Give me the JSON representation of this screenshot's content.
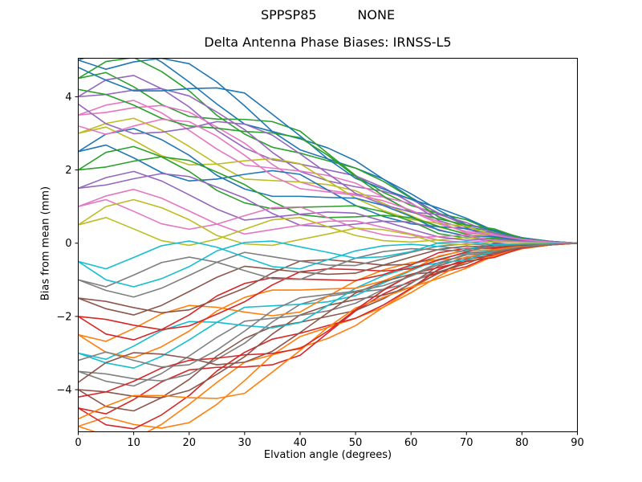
{
  "header": {
    "suptitle": "SPPSP85          NONE",
    "title": "Delta Antenna Phase Biases: IRNSS-L5"
  },
  "chart_data": {
    "type": "line",
    "suptitle": "SPPSP85          NONE",
    "title": "Delta Antenna Phase Biases: IRNSS-L5",
    "xlabel": "Elvation angle (degrees)",
    "ylabel": "Bias from mean (mm)",
    "xlim": [
      0,
      90
    ],
    "ylim": [
      -5.15,
      5.05
    ],
    "xticks": [
      0,
      10,
      20,
      30,
      40,
      50,
      60,
      70,
      80,
      90
    ],
    "yticks": [
      -4,
      -2,
      0,
      2,
      4
    ],
    "grid": false,
    "legend": null,
    "line_width": 1.6,
    "palette": [
      "#1f77b4",
      "#ff7f0e",
      "#2ca02c",
      "#d62728",
      "#9467bd",
      "#8c564b",
      "#e377c2",
      "#7f7f7f",
      "#bcbd22",
      "#17becf"
    ],
    "x": [
      0,
      5,
      10,
      15,
      20,
      25,
      30,
      35,
      40,
      45,
      50,
      55,
      60,
      65,
      70,
      75,
      80,
      85,
      90
    ],
    "series": [
      {
        "color": "#1f77b4",
        "values": [
          5.0,
          5.25,
          5.35,
          4.95,
          4.4,
          3.8,
          3.25,
          3.05,
          2.85,
          2.6,
          2.25,
          1.75,
          1.25,
          0.8,
          0.5,
          0.35,
          0.15,
          0.05,
          0
        ]
      },
      {
        "color": "#ff7f0e",
        "values": [
          -5.0,
          -5.25,
          -5.35,
          -4.95,
          -4.4,
          -3.8,
          -3.25,
          -3.05,
          -2.85,
          -2.6,
          -2.25,
          -1.75,
          -1.25,
          -0.8,
          -0.5,
          -0.35,
          -0.15,
          -0.05,
          0
        ]
      },
      {
        "color": "#2ca02c",
        "values": [
          4.5,
          4.66,
          4.27,
          3.79,
          3.46,
          3.39,
          3.38,
          3.32,
          3.06,
          2.45,
          1.85,
          1.39,
          1.03,
          0.81,
          0.64,
          0.32,
          0.14,
          0.05,
          0
        ]
      },
      {
        "color": "#d62728",
        "values": [
          -4.5,
          -4.66,
          -4.27,
          -3.79,
          -3.46,
          -3.39,
          -3.38,
          -3.32,
          -3.06,
          -2.45,
          -1.85,
          -1.39,
          -1.03,
          -0.81,
          -0.64,
          -0.32,
          -0.14,
          -0.05,
          0
        ]
      },
      {
        "color": "#9467bd",
        "values": [
          4.0,
          4.46,
          4.58,
          4.22,
          3.72,
          3.08,
          2.6,
          2.28,
          2.16,
          2.0,
          1.84,
          1.52,
          1.1,
          0.62,
          0.38,
          0.28,
          0.12,
          0.04,
          0
        ]
      },
      {
        "color": "#8c564b",
        "values": [
          -4.0,
          -4.46,
          -4.58,
          -4.22,
          -3.72,
          -3.08,
          -2.6,
          -2.28,
          -2.16,
          -2.0,
          -1.84,
          -1.52,
          -1.1,
          -0.62,
          -0.38,
          -0.28,
          -0.12,
          -0.04,
          0
        ]
      },
      {
        "color": "#e377c2",
        "values": [
          3.5,
          3.57,
          3.7,
          3.76,
          3.58,
          3.17,
          2.73,
          2.15,
          1.67,
          1.45,
          1.34,
          1.26,
          1.08,
          0.73,
          0.42,
          0.15,
          0.11,
          0.04,
          0
        ]
      },
      {
        "color": "#7f7f7f",
        "values": [
          -3.5,
          -3.57,
          -3.7,
          -3.76,
          -3.58,
          -3.17,
          -2.73,
          -2.15,
          -1.67,
          -1.45,
          -1.34,
          -1.26,
          -1.08,
          -0.73,
          -0.42,
          -0.15,
          -0.11,
          -0.04,
          0
        ]
      },
      {
        "color": "#bcbd22",
        "values": [
          3.0,
          3.27,
          3.41,
          3.09,
          2.64,
          2.16,
          1.75,
          1.71,
          1.67,
          1.6,
          1.43,
          1.09,
          0.75,
          0.44,
          0.26,
          0.21,
          0.09,
          0.03,
          0
        ]
      },
      {
        "color": "#17becf",
        "values": [
          -3.0,
          -3.27,
          -3.41,
          -3.09,
          -2.64,
          -2.16,
          -1.75,
          -1.71,
          -1.67,
          -1.6,
          -1.43,
          -1.09,
          -0.75,
          -0.44,
          -0.26,
          -0.21,
          -0.09,
          -0.03,
          0
        ]
      },
      {
        "color": "#1f77b4",
        "values": [
          2.5,
          2.68,
          2.33,
          1.93,
          1.7,
          1.75,
          1.88,
          1.98,
          1.88,
          1.45,
          1.03,
          0.73,
          0.53,
          0.45,
          0.4,
          0.18,
          0.08,
          0.03,
          0
        ]
      },
      {
        "color": "#ff7f0e",
        "values": [
          -2.5,
          -2.68,
          -2.33,
          -1.93,
          -1.7,
          -1.75,
          -1.88,
          -1.98,
          -1.88,
          -1.45,
          -1.03,
          -0.73,
          -0.53,
          -0.45,
          -0.4,
          -0.18,
          -0.08,
          -0.03,
          0
        ]
      },
      {
        "color": "#2ca02c",
        "values": [
          2.0,
          2.48,
          2.64,
          2.36,
          1.96,
          1.44,
          1.1,
          0.94,
          0.98,
          1.0,
          1.02,
          0.86,
          0.6,
          0.26,
          0.14,
          0.14,
          0.06,
          0.02,
          0
        ]
      },
      {
        "color": "#d62728",
        "values": [
          -2.0,
          -2.48,
          -2.64,
          -2.36,
          -1.96,
          -1.44,
          -1.1,
          -0.94,
          -0.98,
          -1.0,
          -1.02,
          -0.86,
          -0.6,
          -0.26,
          -0.14,
          -0.14,
          -0.06,
          -0.02,
          0
        ]
      },
      {
        "color": "#9467bd",
        "values": [
          1.5,
          1.59,
          1.76,
          1.9,
          1.82,
          1.53,
          1.23,
          0.81,
          0.49,
          0.45,
          0.52,
          0.6,
          0.58,
          0.37,
          0.18,
          0.01,
          0.05,
          0.02,
          0
        ]
      },
      {
        "color": "#8c564b",
        "values": [
          -1.5,
          -1.59,
          -1.76,
          -1.9,
          -1.82,
          -1.53,
          -1.23,
          -0.81,
          -0.49,
          -0.45,
          -0.52,
          -0.6,
          -0.58,
          -0.37,
          -0.18,
          -0.01,
          -0.05,
          -0.02,
          0
        ]
      },
      {
        "color": "#e377c2",
        "values": [
          1.0,
          1.29,
          1.47,
          1.23,
          0.88,
          0.52,
          0.25,
          0.37,
          0.49,
          0.6,
          0.61,
          0.43,
          0.25,
          0.08,
          0.02,
          0.07,
          0.03,
          0.01,
          0
        ]
      },
      {
        "color": "#7f7f7f",
        "values": [
          -1.0,
          -1.29,
          -1.47,
          -1.23,
          -0.88,
          -0.52,
          -0.25,
          -0.37,
          -0.49,
          -0.6,
          -0.61,
          -0.43,
          -0.25,
          -0.08,
          -0.02,
          -0.07,
          -0.03,
          -0.01,
          0
        ]
      },
      {
        "color": "#bcbd22",
        "values": [
          0.5,
          0.7,
          0.39,
          0.07,
          -0.06,
          0.11,
          0.38,
          0.64,
          0.7,
          0.45,
          0.21,
          0.07,
          0.03,
          0.09,
          0.16,
          0.04,
          0.02,
          0.01,
          0
        ]
      },
      {
        "color": "#17becf",
        "values": [
          -0.5,
          -0.7,
          -0.39,
          -0.07,
          0.06,
          -0.11,
          -0.38,
          -0.64,
          -0.7,
          -0.45,
          -0.21,
          -0.07,
          -0.03,
          -0.09,
          -0.16,
          -0.04,
          -0.02,
          -0.01,
          0
        ]
      },
      {
        "color": "#1f77b4",
        "values": [
          5.0,
          4.75,
          4.95,
          5.05,
          4.9,
          4.4,
          3.75,
          3.05,
          2.55,
          2.3,
          2.05,
          1.75,
          1.35,
          0.9,
          0.5,
          0.35,
          0.15,
          0.05,
          0
        ]
      },
      {
        "color": "#ff7f0e",
        "values": [
          -5.0,
          -4.75,
          -4.95,
          -5.05,
          -4.9,
          -4.4,
          -3.75,
          -3.05,
          -2.55,
          -2.3,
          -2.05,
          -1.75,
          -1.35,
          -0.9,
          -0.5,
          -0.35,
          -0.15,
          -0.05,
          0
        ]
      },
      {
        "color": "#2ca02c",
        "values": [
          4.5,
          4.96,
          5.07,
          4.69,
          4.16,
          3.49,
          2.98,
          2.62,
          2.46,
          2.25,
          2.05,
          1.69,
          1.23,
          0.71,
          0.44,
          0.32,
          0.14,
          0.05,
          0
        ]
      },
      {
        "color": "#d62728",
        "values": [
          -4.5,
          -4.96,
          -5.07,
          -4.69,
          -4.16,
          -3.49,
          -2.98,
          -2.62,
          -2.46,
          -2.25,
          -2.05,
          -1.69,
          -1.23,
          -0.71,
          -0.44,
          -0.32,
          -0.14,
          -0.05,
          0
        ]
      },
      {
        "color": "#9467bd",
        "values": [
          4.0,
          4.06,
          4.18,
          4.22,
          4.02,
          3.58,
          3.1,
          2.48,
          1.96,
          1.7,
          1.54,
          1.42,
          1.2,
          0.82,
          0.48,
          0.18,
          0.12,
          0.04,
          0
        ]
      },
      {
        "color": "#8c564b",
        "values": [
          -4.0,
          -4.06,
          -4.18,
          -4.22,
          -4.02,
          -3.58,
          -3.1,
          -2.48,
          -1.96,
          -1.7,
          -1.54,
          -1.42,
          -1.2,
          -0.82,
          -0.48,
          -0.18,
          -0.12,
          -0.04,
          0
        ]
      },
      {
        "color": "#e377c2",
        "values": [
          3.5,
          3.77,
          3.9,
          3.56,
          3.08,
          2.57,
          2.13,
          2.05,
          1.97,
          1.85,
          1.64,
          1.26,
          0.88,
          0.53,
          0.32,
          0.25,
          0.11,
          0.04,
          0
        ]
      },
      {
        "color": "#7f7f7f",
        "values": [
          -3.5,
          -3.77,
          -3.9,
          -3.56,
          -3.08,
          -2.57,
          -2.13,
          -2.05,
          -1.97,
          -1.85,
          -1.64,
          -1.26,
          -0.88,
          -0.53,
          -0.32,
          -0.25,
          -0.11,
          -0.04,
          0
        ]
      },
      {
        "color": "#bcbd22",
        "values": [
          3.0,
          3.17,
          2.81,
          2.39,
          2.14,
          2.16,
          2.25,
          2.31,
          2.17,
          1.7,
          1.23,
          0.89,
          0.65,
          0.54,
          0.46,
          0.21,
          0.09,
          0.03,
          0
        ]
      },
      {
        "color": "#17becf",
        "values": [
          -3.0,
          -3.17,
          -2.81,
          -2.39,
          -2.14,
          -2.16,
          -2.25,
          -2.31,
          -2.17,
          -1.7,
          -1.23,
          -0.89,
          -0.65,
          -0.54,
          -0.46,
          -0.21,
          -0.09,
          -0.03,
          0
        ]
      },
      {
        "color": "#1f77b4",
        "values": [
          2.5,
          2.98,
          3.13,
          2.83,
          2.4,
          1.85,
          1.48,
          1.28,
          1.28,
          1.25,
          1.23,
          1.03,
          0.73,
          0.35,
          0.2,
          0.18,
          0.08,
          0.03,
          0
        ]
      },
      {
        "color": "#ff7f0e",
        "values": [
          -2.5,
          -2.98,
          -3.13,
          -2.83,
          -2.4,
          -1.85,
          -1.48,
          -1.28,
          -1.28,
          -1.25,
          -1.23,
          -1.03,
          -0.73,
          -0.35,
          -0.2,
          -0.18,
          -0.08,
          -0.03,
          0
        ]
      },
      {
        "color": "#2ca02c",
        "values": [
          2.0,
          2.08,
          2.24,
          2.36,
          2.26,
          1.94,
          1.6,
          1.14,
          0.78,
          0.7,
          0.72,
          0.76,
          0.7,
          0.46,
          0.24,
          0.04,
          0.06,
          0.02,
          0
        ]
      },
      {
        "color": "#d62728",
        "values": [
          -2.0,
          -2.08,
          -2.24,
          -2.36,
          -2.26,
          -1.94,
          -1.6,
          -1.14,
          -0.78,
          -0.7,
          -0.72,
          -0.76,
          -0.7,
          -0.46,
          -0.24,
          -0.04,
          -0.06,
          -0.02,
          0
        ]
      },
      {
        "color": "#9467bd",
        "values": [
          1.5,
          1.79,
          1.96,
          1.7,
          1.32,
          0.93,
          0.63,
          0.71,
          0.79,
          0.85,
          0.82,
          0.6,
          0.38,
          0.17,
          0.08,
          0.11,
          0.05,
          0.02,
          0
        ]
      },
      {
        "color": "#8c564b",
        "values": [
          -1.5,
          -1.79,
          -1.96,
          -1.7,
          -1.32,
          -0.93,
          -0.63,
          -0.71,
          -0.79,
          -0.85,
          -0.82,
          -0.6,
          -0.38,
          -0.17,
          -0.08,
          -0.11,
          -0.05,
          -0.02,
          0
        ]
      },
      {
        "color": "#e377c2",
        "values": [
          1.0,
          1.19,
          0.87,
          0.53,
          0.38,
          0.52,
          0.75,
          0.97,
          0.99,
          0.7,
          0.41,
          0.23,
          0.15,
          0.18,
          0.22,
          0.07,
          0.03,
          0.01,
          0
        ]
      },
      {
        "color": "#7f7f7f",
        "values": [
          -1.0,
          -1.19,
          -0.87,
          -0.53,
          -0.38,
          -0.52,
          -0.75,
          -0.97,
          -0.99,
          -0.7,
          -0.41,
          -0.23,
          -0.15,
          -0.18,
          -0.22,
          -0.07,
          -0.03,
          -0.01,
          0
        ]
      },
      {
        "color": "#bcbd22",
        "values": [
          0.5,
          1.0,
          1.19,
          0.97,
          0.64,
          0.21,
          -0.02,
          -0.06,
          0.1,
          0.25,
          0.41,
          0.37,
          0.23,
          -0.01,
          -0.04,
          0.04,
          0.02,
          0.01,
          0
        ]
      },
      {
        "color": "#17becf",
        "values": [
          -0.5,
          -1.0,
          -1.19,
          -0.97,
          -0.64,
          -0.21,
          0.02,
          0.06,
          -0.1,
          -0.25,
          -0.41,
          -0.37,
          -0.23,
          0.01,
          0.04,
          -0.04,
          -0.02,
          -0.01,
          0
        ]
      },
      {
        "color": "#1f77b4",
        "values": [
          4.8,
          4.45,
          4.16,
          4.16,
          4.22,
          4.24,
          4.1,
          3.52,
          2.93,
          2.3,
          1.77,
          1.48,
          1.2,
          0.96,
          0.68,
          0.34,
          0.14,
          0.05,
          0
        ]
      },
      {
        "color": "#ff7f0e",
        "values": [
          -4.8,
          -4.45,
          -4.16,
          -4.16,
          -4.22,
          -4.24,
          -4.1,
          -3.52,
          -2.93,
          -2.3,
          -1.77,
          -1.48,
          -1.2,
          -0.96,
          -0.68,
          -0.34,
          -0.14,
          -0.05,
          0
        ]
      },
      {
        "color": "#2ca02c",
        "values": [
          4.2,
          4.06,
          3.77,
          3.41,
          3.2,
          3.14,
          3.05,
          3.01,
          2.88,
          2.4,
          1.82,
          1.29,
          0.85,
          0.66,
          0.5,
          0.39,
          0.13,
          0.04,
          0
        ]
      },
      {
        "color": "#d62728",
        "values": [
          -4.2,
          -4.06,
          -3.77,
          -3.41,
          -3.2,
          -3.14,
          -3.05,
          -3.01,
          -2.88,
          -2.4,
          -1.82,
          -1.29,
          -0.85,
          -0.66,
          -0.5,
          -0.39,
          -0.13,
          -0.04,
          0
        ]
      },
      {
        "color": "#9467bd",
        "values": [
          3.8,
          3.26,
          2.99,
          3.03,
          3.14,
          3.32,
          3.25,
          2.95,
          2.44,
          1.9,
          1.36,
          1.05,
          0.85,
          0.78,
          0.56,
          0.27,
          0.11,
          0.04,
          0
        ]
      },
      {
        "color": "#8c564b",
        "values": [
          -3.8,
          -3.26,
          -2.99,
          -3.03,
          -3.14,
          -3.32,
          -3.25,
          -2.95,
          -2.44,
          -1.9,
          -1.36,
          -1.05,
          -0.85,
          -0.78,
          -0.56,
          -0.27,
          -0.11,
          -0.04,
          0
        ]
      },
      {
        "color": "#e377c2",
        "values": [
          3.2,
          2.97,
          3.2,
          3.38,
          3.32,
          2.92,
          2.4,
          1.84,
          1.49,
          1.4,
          1.31,
          1.16,
          0.9,
          0.58,
          0.28,
          0.22,
          0.1,
          0.03,
          0
        ]
      },
      {
        "color": "#7f7f7f",
        "values": [
          -3.2,
          -2.97,
          -3.2,
          -3.38,
          -3.32,
          -2.92,
          -2.4,
          -1.84,
          -1.49,
          -1.4,
          -1.31,
          -1.16,
          -0.9,
          -0.58,
          -0.28,
          -0.22,
          -0.1,
          -0.03,
          0
        ]
      }
    ]
  }
}
